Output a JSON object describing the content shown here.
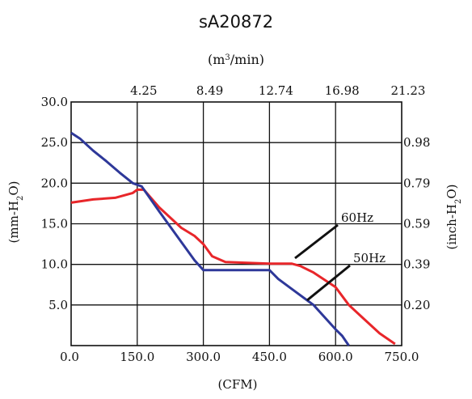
{
  "chart_data": {
    "type": "line",
    "title": "sA20872",
    "top_axis": {
      "label_main": "(m",
      "label_sup": "3",
      "label_end": "/min)",
      "ticks": [
        "4.25",
        "8.49",
        "12.74",
        "16.98",
        "21.23"
      ],
      "tick_cfm": [
        150,
        300,
        450,
        600,
        750
      ]
    },
    "x_axis": {
      "label": "(CFM)",
      "ticks": [
        "0.0",
        "150.0",
        "300.0",
        "450.0",
        "600.0",
        "750.0"
      ],
      "tick_values": [
        0,
        150,
        300,
        450,
        600,
        750
      ],
      "range": [
        0,
        750
      ]
    },
    "y_axis_left": {
      "label_main": "(mm-H",
      "label_sub": "2",
      "label_end": "O)",
      "ticks": [
        "5.0",
        "10.0",
        "15.0",
        "20.0",
        "25.0",
        "30.0"
      ],
      "tick_values": [
        5,
        10,
        15,
        20,
        25,
        30
      ],
      "range": [
        0,
        30
      ]
    },
    "y_axis_right": {
      "label_main": "(inch-H",
      "label_sub": "2",
      "label_end": "O)",
      "ticks": [
        "0.20",
        "0.39",
        "0.59",
        "0.79",
        "0.98"
      ],
      "tick_mm": [
        5,
        10,
        15,
        20,
        25
      ]
    },
    "grid": true,
    "series": [
      {
        "name": "60Hz",
        "color": "#e8262a",
        "x": [
          0,
          50,
          100,
          140,
          150,
          165,
          200,
          250,
          280,
          300,
          320,
          350,
          400,
          450,
          500,
          520,
          550,
          600,
          630,
          660,
          700,
          735
        ],
        "y": [
          17.6,
          18.0,
          18.2,
          18.8,
          19.2,
          19.2,
          17.0,
          14.5,
          13.5,
          12.5,
          11.0,
          10.3,
          10.2,
          10.1,
          10.1,
          9.8,
          9.0,
          7.2,
          5.0,
          3.5,
          1.5,
          0.2
        ]
      },
      {
        "name": "50Hz",
        "color": "#2e3899",
        "x": [
          0,
          20,
          50,
          80,
          110,
          140,
          160,
          200,
          240,
          280,
          300,
          330,
          400,
          450,
          470,
          500,
          550,
          580,
          600,
          615,
          630
        ],
        "y": [
          26.2,
          25.5,
          24.0,
          22.7,
          21.3,
          20.0,
          19.6,
          16.5,
          13.5,
          10.5,
          9.3,
          9.3,
          9.3,
          9.3,
          8.2,
          7.0,
          5.0,
          3.2,
          2.0,
          1.2,
          0.0
        ]
      }
    ]
  }
}
